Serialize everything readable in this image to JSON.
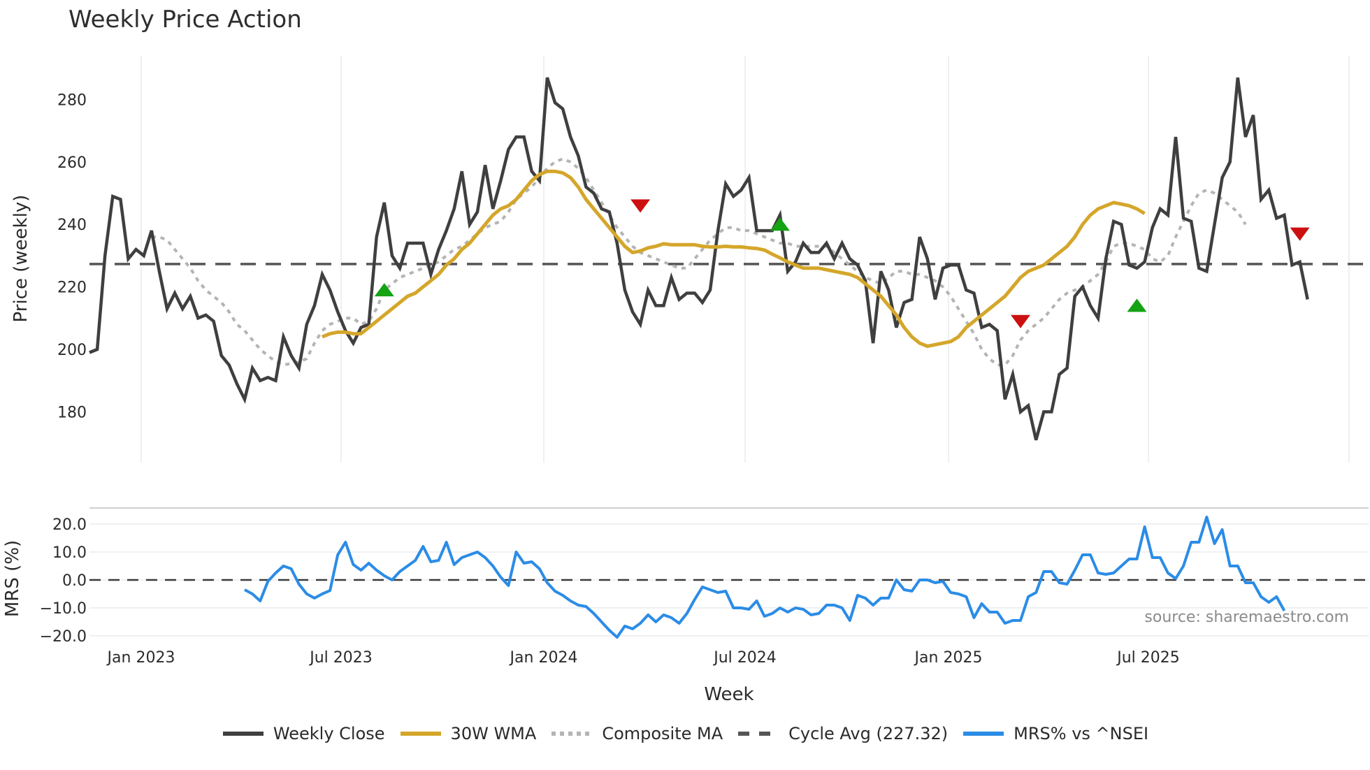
{
  "title": "Weekly Price Action",
  "source_text": "source: sharemaestro.com",
  "colors": {
    "close": "#3f3f3f",
    "wma": "#d4a62a",
    "composite": "#b4b4b4",
    "cycle": "#555555",
    "mrs": "#2b8ce6",
    "buy": "#13a313",
    "sell": "#cc1010",
    "grid": "#eef0f3"
  },
  "legend": [
    {
      "label": "Weekly Close",
      "key": "close",
      "style": "solid"
    },
    {
      "label": "30W WMA",
      "key": "wma",
      "style": "solid"
    },
    {
      "label": "Composite MA",
      "key": "composite",
      "style": "dotted"
    },
    {
      "label": "Cycle Avg (227.32)",
      "key": "cycle",
      "style": "dashed"
    },
    {
      "label": "MRS% vs ^NSEI",
      "key": "mrs",
      "style": "solid"
    }
  ],
  "chart_data": [
    {
      "type": "line",
      "title": "Weekly Price Action",
      "xlabel": "Week",
      "ylabel": "Price (weekly)",
      "ylim": [
        165,
        295
      ],
      "y_ticks": [
        180,
        200,
        220,
        240,
        260,
        280
      ],
      "x_ticks": [
        "Jan 2023",
        "Jul 2023",
        "Jan 2024",
        "Jul 2024",
        "Jan 2025",
        "Jul 2025"
      ],
      "grid": true,
      "x_start_week_index": 0,
      "cycle_avg": 227.32,
      "series": [
        {
          "name": "Weekly Close",
          "start": 0,
          "values": [
            199,
            200,
            230,
            249,
            248,
            229,
            232,
            230,
            238,
            225,
            213,
            218,
            213,
            217,
            210,
            211,
            209,
            198,
            195,
            189,
            184,
            194,
            190,
            191,
            190,
            204,
            198,
            194,
            208,
            214,
            224,
            219,
            212,
            206,
            202,
            207,
            208,
            236,
            247,
            230,
            226,
            234,
            234,
            234,
            224,
            232,
            238,
            245,
            257,
            240,
            244,
            259,
            245,
            254,
            264,
            268,
            268,
            257,
            254,
            287,
            279,
            277,
            268,
            262,
            252,
            250,
            245,
            244,
            234,
            219,
            212,
            208,
            219,
            214,
            214,
            223,
            216,
            218,
            218,
            215,
            219,
            238,
            253,
            249,
            251,
            255,
            238,
            238,
            238,
            243,
            225,
            228,
            234,
            231,
            231,
            234,
            229,
            234,
            229,
            227,
            222,
            202,
            225,
            219,
            207,
            215,
            216,
            236,
            229,
            216,
            226,
            227,
            227,
            219,
            218,
            207,
            208,
            206,
            184,
            192,
            180,
            182,
            171,
            180,
            180,
            192,
            194,
            217,
            220,
            214,
            210,
            229,
            241,
            240,
            227,
            226,
            228,
            239,
            245,
            243,
            268,
            242,
            241,
            226,
            225,
            240,
            255,
            260,
            287,
            268,
            275,
            248,
            251,
            242,
            243,
            227,
            228,
            216
          ]
        },
        {
          "name": "30W WMA",
          "start": 30,
          "values": [
            204,
            205,
            205.5,
            205.5,
            205,
            205,
            207,
            209,
            211,
            213,
            215,
            217,
            218,
            220,
            222,
            224,
            227,
            229,
            232,
            234,
            237,
            240,
            243,
            245,
            246,
            248,
            251,
            254,
            256,
            257,
            257,
            256.5,
            255,
            252,
            248,
            245,
            242,
            239,
            236,
            233,
            231,
            231.5,
            232.5,
            233,
            233.8,
            233.5,
            233.5,
            233.5,
            233.5,
            233,
            232.8,
            232.8,
            233,
            232.8,
            232.8,
            232.5,
            232.3,
            231.8,
            230.5,
            229.3,
            228,
            227,
            226,
            226,
            226,
            225.5,
            225,
            224.5,
            224,
            223,
            221,
            219,
            217,
            214,
            211,
            207,
            204,
            202,
            201,
            201.5,
            202,
            202.5,
            204,
            207,
            209,
            211,
            213,
            215,
            217,
            220,
            223,
            225,
            226,
            227,
            229,
            231,
            233,
            236,
            240,
            243,
            245,
            246,
            247,
            246.5,
            246,
            245,
            243.5
          ]
        },
        {
          "name": "Composite MA",
          "start": 8,
          "values": [
            236,
            236,
            235,
            232,
            229,
            226,
            222,
            219,
            217,
            215,
            212,
            208,
            206,
            203,
            200,
            198,
            196,
            195,
            195.5,
            196,
            197,
            202,
            206,
            208,
            209,
            210,
            210,
            208,
            209,
            213,
            219,
            221,
            223,
            224,
            225,
            226,
            227,
            228,
            230,
            232,
            233,
            235,
            237,
            239,
            240,
            241,
            244,
            248,
            250,
            252,
            255,
            258,
            260,
            261,
            260,
            258,
            255,
            251,
            247,
            243,
            239,
            236,
            233,
            231,
            230,
            229,
            228,
            227,
            226,
            226,
            229,
            232,
            235,
            237,
            239,
            239,
            238,
            238,
            237,
            236,
            235,
            234,
            234,
            233,
            233,
            233,
            233,
            233,
            231,
            229,
            227,
            225,
            223,
            222,
            221,
            223,
            225,
            225,
            224,
            224,
            223,
            222,
            220,
            217,
            213,
            209,
            205,
            200,
            197,
            195,
            195,
            198,
            203,
            206,
            208,
            210,
            213,
            216,
            218,
            219,
            220,
            222,
            224,
            228,
            233,
            234,
            234,
            233,
            232,
            229,
            228,
            230,
            236,
            241,
            246,
            250,
            251,
            250,
            248,
            246,
            244,
            240
          ]
        },
        {
          "name": "Cycle Avg",
          "constant": 227.32
        }
      ],
      "markers": [
        {
          "type": "buy",
          "week": 38,
          "price": 219
        },
        {
          "type": "sell",
          "week": 71,
          "price": 246
        },
        {
          "type": "buy",
          "week": 89,
          "price": 240
        },
        {
          "type": "sell",
          "week": 120,
          "price": 209
        },
        {
          "type": "buy",
          "week": 135,
          "price": 214
        },
        {
          "type": "sell",
          "week": 156,
          "price": 237
        }
      ]
    },
    {
      "type": "line",
      "title": "",
      "xlabel": "Week",
      "ylabel": "MRS (%)",
      "ylim": [
        -23,
        26
      ],
      "y_ticks": [
        "20.0",
        "10.0",
        "0.0",
        "−10.0",
        "−20.0"
      ],
      "y_tick_values": [
        20,
        10,
        0,
        -10,
        -20
      ],
      "zero_line": 0,
      "series": [
        {
          "name": "MRS% vs ^NSEI",
          "start": 20,
          "values": [
            -3.5,
            -5,
            -7.5,
            -0.5,
            2.5,
            5,
            4,
            -1.5,
            -5,
            -6.5,
            -5,
            -3.8,
            9,
            13.5,
            5.5,
            3.5,
            6,
            3.5,
            1.5,
            0,
            3,
            5,
            7,
            12,
            6.5,
            7,
            13.5,
            5.5,
            8,
            9,
            10,
            8,
            5,
            1,
            -2,
            10,
            6,
            6.5,
            4,
            -1,
            -4,
            -5.5,
            -7.5,
            -9,
            -9.5,
            -12,
            -15,
            -18,
            -20.5,
            -16.5,
            -17.5,
            -15.5,
            -12.5,
            -15,
            -12.5,
            -13.5,
            -15.5,
            -12,
            -7,
            -2.5,
            -3.5,
            -4.5,
            -4,
            -10,
            -10,
            -10.5,
            -7.5,
            -13,
            -12,
            -10,
            -11.5,
            -10,
            -10.5,
            -12.5,
            -12,
            -9,
            -9,
            -10,
            -14.5,
            -5.5,
            -6.5,
            -9,
            -6.5,
            -6.5,
            0,
            -3.5,
            -4,
            0,
            0,
            -1,
            -0.5,
            -4.5,
            -5,
            -6,
            -13.5,
            -8.5,
            -11.5,
            -11.5,
            -15.5,
            -14.5,
            -14.5,
            -6,
            -4.5,
            3,
            3,
            -1,
            -1.5,
            3.5,
            9,
            9,
            2.5,
            2,
            2.5,
            5,
            7.5,
            7.5,
            19,
            8,
            8,
            2.5,
            0.5,
            5,
            13.5,
            13.5,
            22.5,
            13,
            18,
            5,
            5,
            -1,
            -1,
            -6,
            -8,
            -6,
            -11
          ]
        }
      ]
    }
  ]
}
